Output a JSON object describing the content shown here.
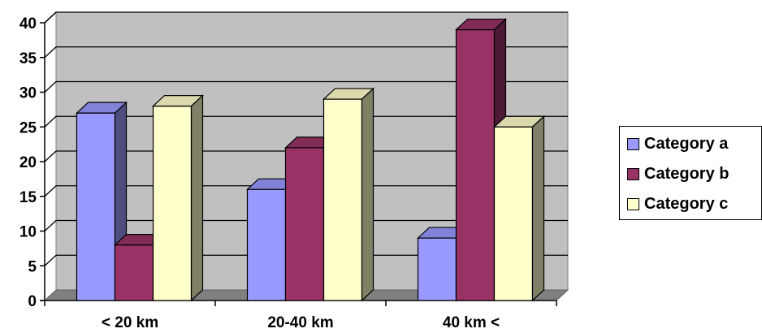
{
  "chart_data": {
    "type": "bar",
    "categories": [
      "< 20 km",
      "20-40 km",
      "40 km <"
    ],
    "series": [
      {
        "name": "Category a",
        "values": [
          27,
          16,
          9
        ],
        "color": "#9999ff"
      },
      {
        "name": "Category b",
        "values": [
          8,
          22,
          39
        ],
        "color": "#993366"
      },
      {
        "name": "Category c",
        "values": [
          28,
          29,
          25
        ],
        "color": "#ffffcc"
      }
    ],
    "title": "",
    "xlabel": "",
    "ylabel": "",
    "ylim": [
      0,
      40
    ],
    "yticks": [
      "0",
      "5",
      "10",
      "15",
      "20",
      "25",
      "30",
      "35",
      "40"
    ],
    "grid": true,
    "legend": "right",
    "style": "3d-clustered-column",
    "wall_color": "#c0c0c0",
    "floor_color": "#808080"
  }
}
